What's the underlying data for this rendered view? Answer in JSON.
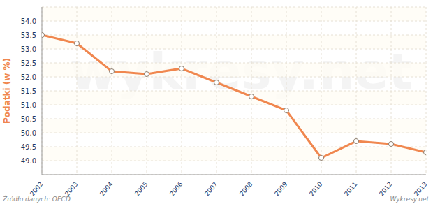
{
  "chart_data": {
    "type": "line",
    "y_label": "Podatki (w %)",
    "x": [
      2002,
      2003,
      2004,
      2005,
      2006,
      2007,
      2008,
      2009,
      2010,
      2011,
      2012,
      2013
    ],
    "values": [
      53.5,
      53.2,
      52.2,
      52.1,
      52.3,
      51.8,
      51.3,
      50.8,
      49.1,
      49.7,
      49.6,
      49.3
    ],
    "color": "#f0874f",
    "marker": "circle",
    "xlim": [
      2002,
      2013
    ],
    "xticks": [
      2002,
      2003,
      2004,
      2005,
      2006,
      2007,
      2008,
      2009,
      2010,
      2011,
      2012,
      2013
    ],
    "ylim": [
      48.5,
      54.5
    ],
    "yticks": [
      {
        "value": 49,
        "label": "49.0"
      },
      {
        "value": 49.5,
        "label": "49.5"
      },
      {
        "value": 50,
        "label": "50.0"
      },
      {
        "value": 50.5,
        "label": "50.5"
      },
      {
        "value": 51,
        "label": "51.0"
      },
      {
        "value": 51.5,
        "label": "51.5"
      },
      {
        "value": 52,
        "label": "52.0"
      },
      {
        "value": 52.5,
        "label": "52.5"
      },
      {
        "value": 53,
        "label": "53.0"
      },
      {
        "value": 53.5,
        "label": "53.5"
      },
      {
        "value": 54,
        "label": "54.0"
      }
    ],
    "grid": true,
    "source": "Źródło danych: OECD",
    "credit": "Wykresy.net",
    "watermark": "wykresy.net"
  }
}
